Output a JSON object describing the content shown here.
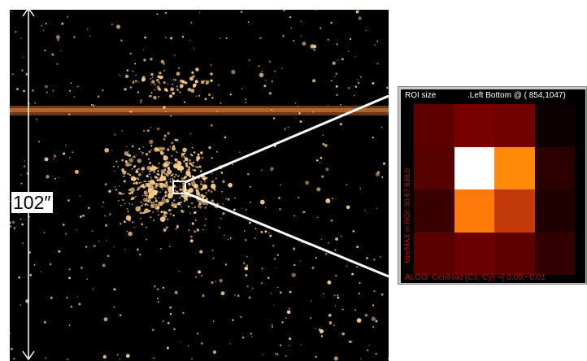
{
  "figure": {
    "scale_label": "102″",
    "colors": {
      "star": "#ffcf8a",
      "streak": "#b86a2a",
      "zoom_line": "#ffffff",
      "panel_text": "#b01a0a"
    }
  },
  "zoom_panel": {
    "roi_label": "ROI size",
    "position_label": ".Left Bottom @ ( 854,1047)",
    "left_side_text": "Min/MAX in ROI:   30.67   638.0",
    "right_side_text": "",
    "footer_text": "ALGO: Centroid  (Cx, Cy) =( 0.00,−0.01",
    "pixel_colors": [
      [
        "#5e0000",
        "#790000",
        "#700000",
        "#0d0000"
      ],
      [
        "#560000",
        "#ffffff",
        "#ff8a0a",
        "#2c0000"
      ],
      [
        "#3a0000",
        "#ff7a08",
        "#c23a0a",
        "#1e0000"
      ],
      [
        "#5a0000",
        "#6a0000",
        "#5e0000",
        "#330000"
      ]
    ]
  }
}
